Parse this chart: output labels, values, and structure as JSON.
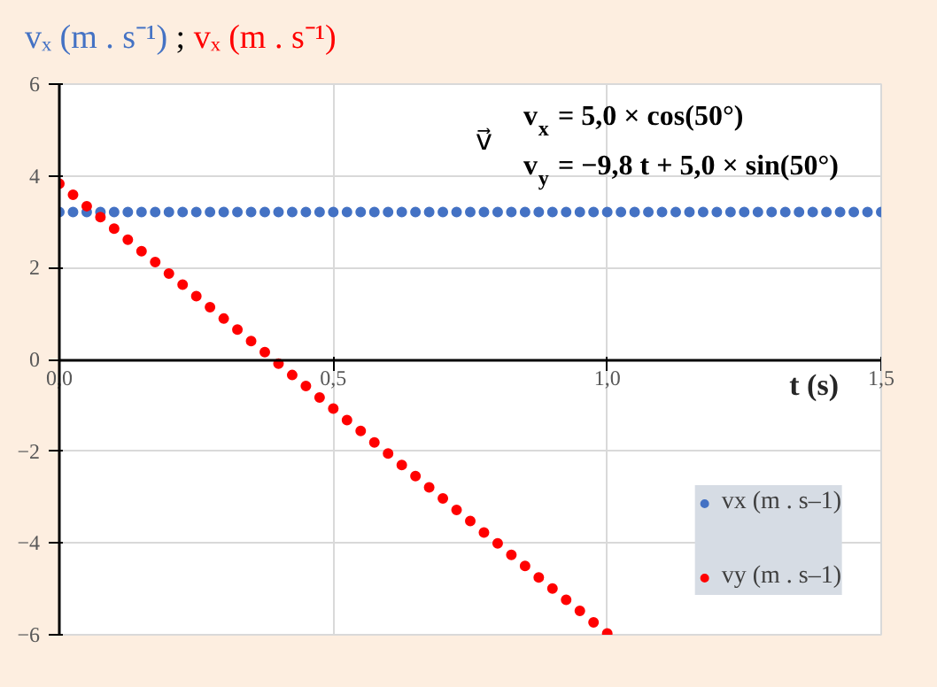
{
  "chart_data": {
    "type": "scatter",
    "title": "vₓ (m . s⁻¹) ; vₓ (m . s⁻¹)",
    "xlabel": "t (s)",
    "annotations": [
      "v⃗",
      "v$_{x}$ = 5,0 × cos(50°)",
      "v$_{y}$ = −9,8 t + 5,0 × sin(50°)"
    ],
    "xlim": [
      0,
      1.5
    ],
    "ylim": [
      -6,
      6
    ],
    "xticks": [
      {
        "value": 0,
        "label": "0,0"
      },
      {
        "value": 0.5,
        "label": "0,5"
      },
      {
        "value": 1.0,
        "label": "1,0"
      },
      {
        "value": 1.5,
        "label": "1,5"
      }
    ],
    "yticks": [
      -6,
      -4,
      -2,
      0,
      2,
      4,
      6
    ],
    "grid": true,
    "legend": "bottom right",
    "marker": "circle",
    "series": [
      {
        "name": "vx (m . s–1)",
        "color": "#4472c4",
        "x": [
          0,
          0.025,
          0.05,
          0.075,
          0.1,
          0.125,
          0.15,
          0.175,
          0.2,
          0.225,
          0.25,
          0.275,
          0.3,
          0.325,
          0.35,
          0.375,
          0.4,
          0.425,
          0.45,
          0.475,
          0.5,
          0.525,
          0.55,
          0.575,
          0.6,
          0.625,
          0.65,
          0.675,
          0.7,
          0.725,
          0.75,
          0.775,
          0.8,
          0.825,
          0.85,
          0.875,
          0.9,
          0.925,
          0.95,
          0.975,
          1.0,
          1.025,
          1.05,
          1.075,
          1.1,
          1.125,
          1.15,
          1.175,
          1.2,
          1.225,
          1.25,
          1.275,
          1.3,
          1.325,
          1.35,
          1.375,
          1.4,
          1.425,
          1.45,
          1.475,
          1.5
        ],
        "values": [
          3.21,
          3.21,
          3.21,
          3.21,
          3.21,
          3.21,
          3.21,
          3.21,
          3.21,
          3.21,
          3.21,
          3.21,
          3.21,
          3.21,
          3.21,
          3.21,
          3.21,
          3.21,
          3.21,
          3.21,
          3.21,
          3.21,
          3.21,
          3.21,
          3.21,
          3.21,
          3.21,
          3.21,
          3.21,
          3.21,
          3.21,
          3.21,
          3.21,
          3.21,
          3.21,
          3.21,
          3.21,
          3.21,
          3.21,
          3.21,
          3.21,
          3.21,
          3.21,
          3.21,
          3.21,
          3.21,
          3.21,
          3.21,
          3.21,
          3.21,
          3.21,
          3.21,
          3.21,
          3.21,
          3.21,
          3.21,
          3.21,
          3.21,
          3.21,
          3.21,
          3.21
        ]
      },
      {
        "name": "vy (m . s–1)",
        "color": "#ff0000",
        "x": [
          0,
          0.025,
          0.05,
          0.075,
          0.1,
          0.125,
          0.15,
          0.175,
          0.2,
          0.225,
          0.25,
          0.275,
          0.3,
          0.325,
          0.35,
          0.375,
          0.4,
          0.425,
          0.45,
          0.475,
          0.5,
          0.525,
          0.55,
          0.575,
          0.6,
          0.625,
          0.65,
          0.675,
          0.7,
          0.725,
          0.75,
          0.775,
          0.8,
          0.825,
          0.85,
          0.875,
          0.9,
          0.925,
          0.95,
          0.975,
          1.0
        ],
        "values": [
          3.83,
          3.59,
          3.34,
          3.1,
          2.85,
          2.61,
          2.36,
          2.12,
          1.87,
          1.63,
          1.38,
          1.14,
          0.89,
          0.65,
          0.4,
          0.16,
          -0.09,
          -0.34,
          -0.58,
          -0.83,
          -1.07,
          -1.32,
          -1.56,
          -1.81,
          -2.05,
          -2.3,
          -2.54,
          -2.79,
          -3.03,
          -3.28,
          -3.52,
          -3.77,
          -4.01,
          -4.26,
          -4.5,
          -4.75,
          -4.99,
          -5.24,
          -5.48,
          -5.73,
          -5.97
        ]
      }
    ]
  }
}
